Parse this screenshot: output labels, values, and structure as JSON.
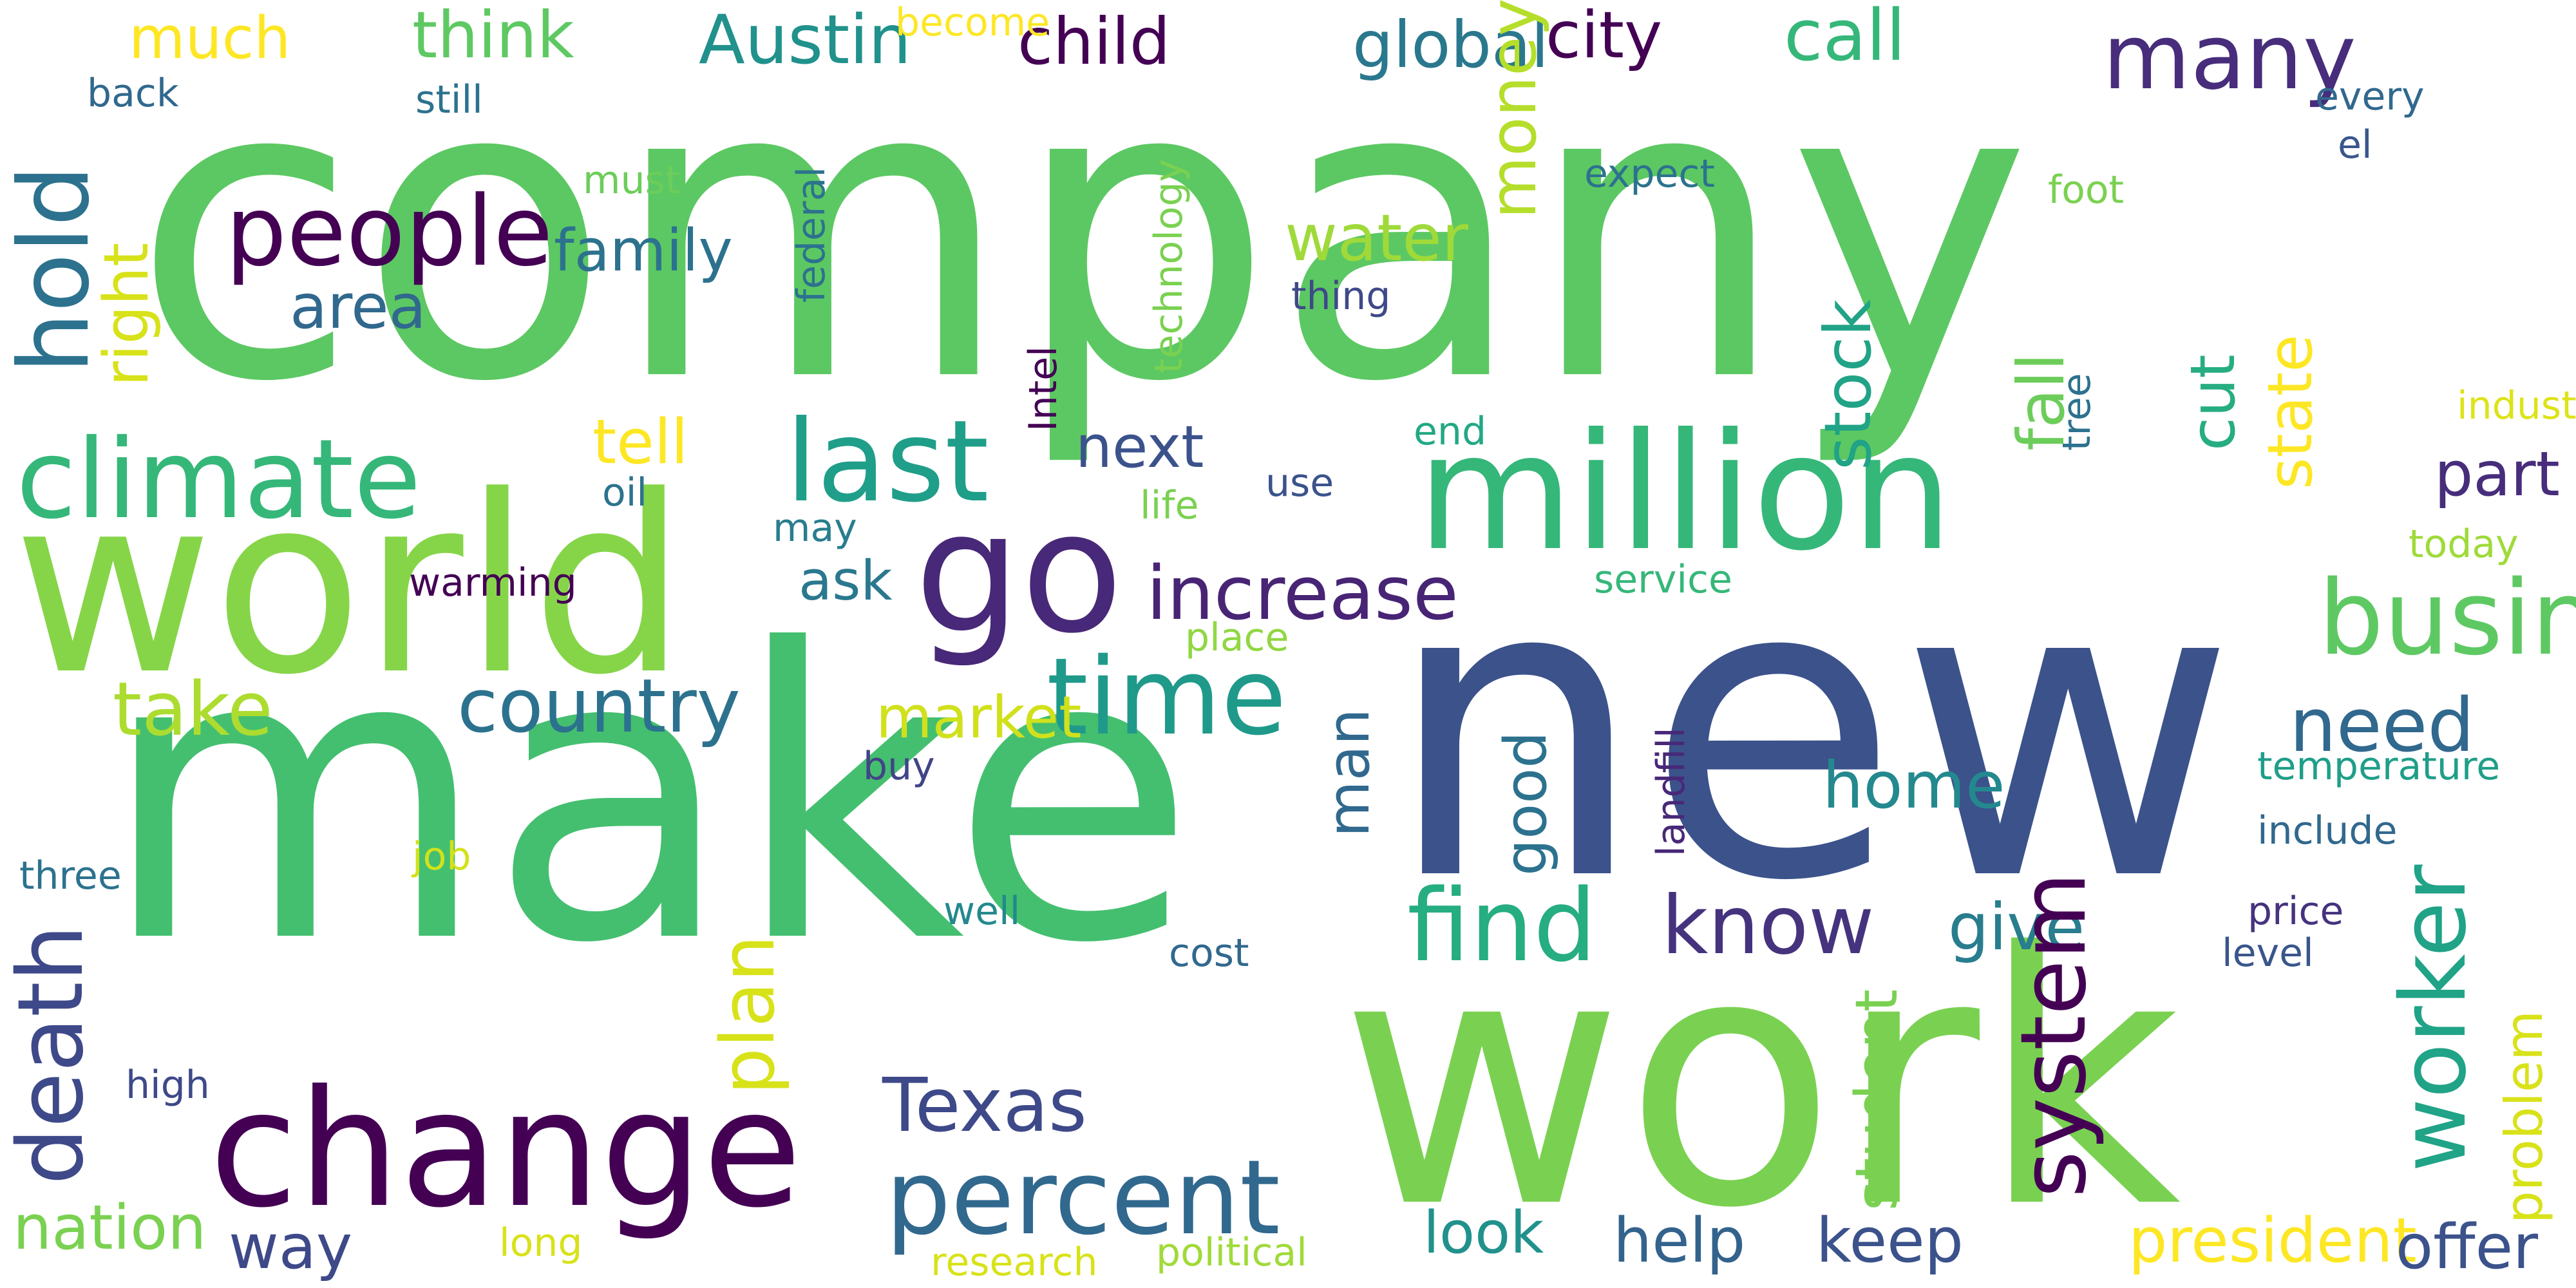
{
  "words": [
    {
      "text": "company",
      "color": "#5cc863"
    },
    {
      "text": "new",
      "color": "#3b528b"
    },
    {
      "text": "make",
      "color": "#44bf70"
    },
    {
      "text": "work",
      "color": "#7ad151"
    },
    {
      "text": "world",
      "color": "#86d549"
    },
    {
      "text": "million",
      "color": "#35b779"
    },
    {
      "text": "change",
      "color": "#440154"
    },
    {
      "text": "go",
      "color": "#482878"
    },
    {
      "text": "climate",
      "color": "#35b779"
    },
    {
      "text": "last",
      "color": "#1f9e89"
    },
    {
      "text": "time",
      "color": "#1f9a8a"
    },
    {
      "text": "percent",
      "color": "#31688e"
    },
    {
      "text": "find",
      "color": "#26ad81"
    },
    {
      "text": "people",
      "color": "#440154"
    },
    {
      "text": "many",
      "color": "#472d7b"
    },
    {
      "text": "business",
      "color": "#5ec962"
    },
    {
      "text": "Texas",
      "color": "#3e4989"
    },
    {
      "text": "take",
      "color": "#addc30"
    },
    {
      "text": "know",
      "color": "#46337e"
    },
    {
      "text": "need",
      "color": "#31688e"
    },
    {
      "text": "president",
      "color": "#fde725"
    },
    {
      "text": "country",
      "color": "#2c728e"
    },
    {
      "text": "increase",
      "color": "#482475"
    },
    {
      "text": "call",
      "color": "#35b779"
    },
    {
      "text": "Austin",
      "color": "#21918c"
    },
    {
      "text": "child",
      "color": "#440154"
    },
    {
      "text": "think",
      "color": "#5ec962"
    },
    {
      "text": "much",
      "color": "#fde725"
    },
    {
      "text": "global",
      "color": "#2a788e"
    },
    {
      "text": "city",
      "color": "#440154"
    },
    {
      "text": "water",
      "color": "#9fda3a"
    },
    {
      "text": "family",
      "color": "#2c728e"
    },
    {
      "text": "market",
      "color": "#d0e11c"
    },
    {
      "text": "home",
      "color": "#23898e"
    },
    {
      "text": "give",
      "color": "#287d8e"
    },
    {
      "text": "way",
      "color": "#3e4989"
    },
    {
      "text": "keep",
      "color": "#3b528b"
    },
    {
      "text": "help",
      "color": "#33638d"
    },
    {
      "text": "look",
      "color": "#21918c"
    },
    {
      "text": "offer",
      "color": "#3b528b"
    },
    {
      "text": "nation",
      "color": "#7ad151"
    },
    {
      "text": "next",
      "color": "#3b528b"
    },
    {
      "text": "tell",
      "color": "#fde725"
    },
    {
      "text": "area",
      "color": "#31688e"
    },
    {
      "text": "ask",
      "color": "#2a788e"
    },
    {
      "text": "part",
      "color": "#472d7b"
    },
    {
      "text": "end",
      "color": "#22a884"
    },
    {
      "text": "oil",
      "color": "#2c728e"
    },
    {
      "text": "life",
      "color": "#7ad151"
    },
    {
      "text": "use",
      "color": "#3b528b"
    },
    {
      "text": "may",
      "color": "#287d8e"
    },
    {
      "text": "warming",
      "color": "#440154"
    },
    {
      "text": "service",
      "color": "#35b779"
    },
    {
      "text": "place",
      "color": "#90d743"
    },
    {
      "text": "temperature",
      "color": "#1f9e89"
    },
    {
      "text": "include",
      "color": "#31688e"
    },
    {
      "text": "price",
      "color": "#46327e"
    },
    {
      "text": "level",
      "color": "#39568c"
    },
    {
      "text": "buy",
      "color": "#414487"
    },
    {
      "text": "job",
      "color": "#d2e21b"
    },
    {
      "text": "three",
      "color": "#2c728e"
    },
    {
      "text": "well",
      "color": "#23898e"
    },
    {
      "text": "cost",
      "color": "#31688e"
    },
    {
      "text": "high",
      "color": "#3e4989"
    },
    {
      "text": "long",
      "color": "#d8e219"
    },
    {
      "text": "research",
      "color": "#d8e219"
    },
    {
      "text": "political",
      "color": "#a0da39"
    },
    {
      "text": "expect",
      "color": "#2c728e"
    },
    {
      "text": "foot",
      "color": "#7ad151"
    },
    {
      "text": "every",
      "color": "#31688e"
    },
    {
      "text": "el",
      "color": "#39568c"
    },
    {
      "text": "industry",
      "color": "#dde318"
    },
    {
      "text": "today",
      "color": "#9fda3a"
    },
    {
      "text": "must",
      "color": "#6ccd5a"
    },
    {
      "text": "back",
      "color": "#31688e"
    },
    {
      "text": "become",
      "color": "#fde725"
    },
    {
      "text": "still",
      "color": "#2c728e"
    },
    {
      "text": "thing",
      "color": "#3e4989"
    },
    {
      "text": "hold",
      "color": "#2c728e"
    },
    {
      "text": "right",
      "color": "#d8e219"
    },
    {
      "text": "death",
      "color": "#3e4989"
    },
    {
      "text": "plan",
      "color": "#d8e219"
    },
    {
      "text": "federal",
      "color": "#2c728e"
    },
    {
      "text": "Intel",
      "color": "#440154"
    },
    {
      "text": "technology",
      "color": "#7ad151"
    },
    {
      "text": "money",
      "color": "#b5de2b"
    },
    {
      "text": "stock",
      "color": "#20a386"
    },
    {
      "text": "fall",
      "color": "#6ccd5a"
    },
    {
      "text": "tree",
      "color": "#2c728e"
    },
    {
      "text": "cut",
      "color": "#26ad81"
    },
    {
      "text": "state",
      "color": "#fde725"
    },
    {
      "text": "man",
      "color": "#31688e"
    },
    {
      "text": "good",
      "color": "#2c728e"
    },
    {
      "text": "landfill",
      "color": "#482878"
    },
    {
      "text": "student",
      "color": "#7ad151"
    },
    {
      "text": "system",
      "color": "#440154"
    },
    {
      "text": "worker",
      "color": "#20a386"
    },
    {
      "text": "problem",
      "color": "#d8e219"
    }
  ]
}
